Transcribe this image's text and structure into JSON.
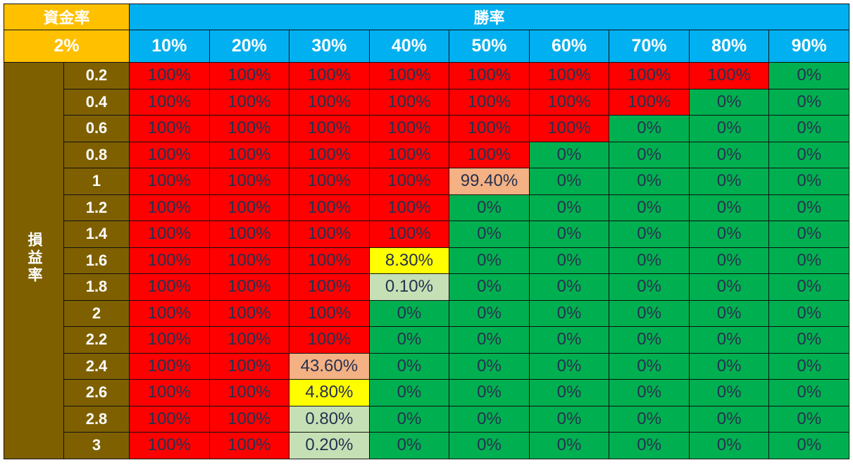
{
  "capital_rate_label": "資金率",
  "capital_rate_value": "2%",
  "win_rate_label": "勝率",
  "profit_loss_ratio_label": "損益率",
  "palette": {
    "R": "#FF0000",
    "G": "#00B050",
    "P": "#F4B183",
    "Y": "#FFFF00",
    "L": "#C5E0B4",
    "header_gold": "#FFC000",
    "header_blue": "#00B0F0",
    "row_brown": "#7F6000"
  },
  "chart_data": {
    "type": "heatmap",
    "x": [
      "10%",
      "20%",
      "30%",
      "40%",
      "50%",
      "60%",
      "70%",
      "80%",
      "90%"
    ],
    "y": [
      "0.2",
      "0.4",
      "0.6",
      "0.8",
      "1",
      "1.2",
      "1.4",
      "1.6",
      "1.8",
      "2",
      "2.2",
      "2.4",
      "2.6",
      "2.8",
      "3"
    ],
    "values": [
      [
        "100%",
        "100%",
        "100%",
        "100%",
        "100%",
        "100%",
        "100%",
        "100%",
        "0%"
      ],
      [
        "100%",
        "100%",
        "100%",
        "100%",
        "100%",
        "100%",
        "100%",
        "0%",
        "0%"
      ],
      [
        "100%",
        "100%",
        "100%",
        "100%",
        "100%",
        "100%",
        "0%",
        "0%",
        "0%"
      ],
      [
        "100%",
        "100%",
        "100%",
        "100%",
        "100%",
        "0%",
        "0%",
        "0%",
        "0%"
      ],
      [
        "100%",
        "100%",
        "100%",
        "100%",
        "99.40%",
        "0%",
        "0%",
        "0%",
        "0%"
      ],
      [
        "100%",
        "100%",
        "100%",
        "100%",
        "0%",
        "0%",
        "0%",
        "0%",
        "0%"
      ],
      [
        "100%",
        "100%",
        "100%",
        "100%",
        "0%",
        "0%",
        "0%",
        "0%",
        "0%"
      ],
      [
        "100%",
        "100%",
        "100%",
        "8.30%",
        "0%",
        "0%",
        "0%",
        "0%",
        "0%"
      ],
      [
        "100%",
        "100%",
        "100%",
        "0.10%",
        "0%",
        "0%",
        "0%",
        "0%",
        "0%"
      ],
      [
        "100%",
        "100%",
        "100%",
        "0%",
        "0%",
        "0%",
        "0%",
        "0%",
        "0%"
      ],
      [
        "100%",
        "100%",
        "100%",
        "0%",
        "0%",
        "0%",
        "0%",
        "0%",
        "0%"
      ],
      [
        "100%",
        "100%",
        "43.60%",
        "0%",
        "0%",
        "0%",
        "0%",
        "0%",
        "0%"
      ],
      [
        "100%",
        "100%",
        "4.80%",
        "0%",
        "0%",
        "0%",
        "0%",
        "0%",
        "0%"
      ],
      [
        "100%",
        "100%",
        "0.80%",
        "0%",
        "0%",
        "0%",
        "0%",
        "0%",
        "0%"
      ],
      [
        "100%",
        "100%",
        "0.20%",
        "0%",
        "0%",
        "0%",
        "0%",
        "0%",
        "0%"
      ]
    ],
    "fills": [
      "RRRRRRRRG",
      "RRRRRRRGG",
      "RRRRRRGGG",
      "RRRRRGGGG",
      "RRRRPGGGG",
      "RRRRGGGGG",
      "RRRRGGGGG",
      "RRRYGGGGG",
      "RRRLGGGGG",
      "RRRGGGGGG",
      "RRRGGGGGG",
      "RRPGGGGGG",
      "RRYGGGGGG",
      "RRLGGGGGG",
      "RRLGGGGGG"
    ]
  }
}
